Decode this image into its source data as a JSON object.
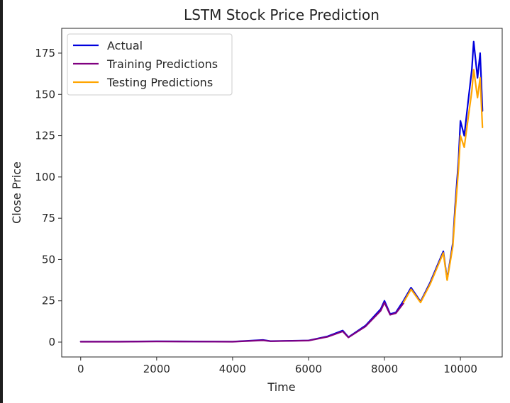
{
  "chart_data": {
    "type": "line",
    "title": "LSTM Stock Price Prediction",
    "xlabel": "Time",
    "ylabel": "Close Price",
    "xlim": [
      -500,
      11100
    ],
    "ylim": [
      -9,
      190
    ],
    "xticks": [
      0,
      2000,
      4000,
      6000,
      8000,
      10000
    ],
    "yticks": [
      0,
      25,
      50,
      75,
      100,
      125,
      150,
      175
    ],
    "grid": false,
    "legend_position": "upper-left",
    "series": [
      {
        "name": "Actual",
        "color": "#0000dd",
        "points": [
          [
            0,
            0.3
          ],
          [
            1000,
            0.3
          ],
          [
            2000,
            0.5
          ],
          [
            3000,
            0.4
          ],
          [
            4000,
            0.3
          ],
          [
            4800,
            1.3
          ],
          [
            5000,
            0.6
          ],
          [
            6000,
            1.0
          ],
          [
            6500,
            3.5
          ],
          [
            6900,
            7.0
          ],
          [
            7050,
            3.0
          ],
          [
            7500,
            10.0
          ],
          [
            7900,
            20.0
          ],
          [
            8000,
            25.0
          ],
          [
            8150,
            17.0
          ],
          [
            8300,
            18.0
          ],
          [
            8500,
            25.0
          ],
          [
            8700,
            33.0
          ],
          [
            8950,
            24.5
          ],
          [
            9200,
            36.0
          ],
          [
            9550,
            55.0
          ],
          [
            9650,
            38.0
          ],
          [
            9800,
            60.0
          ],
          [
            9860,
            82.0
          ],
          [
            9950,
            110.0
          ],
          [
            10000,
            134.0
          ],
          [
            10100,
            125.0
          ],
          [
            10200,
            145.0
          ],
          [
            10300,
            165.0
          ],
          [
            10350,
            182.0
          ],
          [
            10450,
            160.0
          ],
          [
            10520,
            175.0
          ],
          [
            10580,
            140.0
          ]
        ]
      },
      {
        "name": "Training Predictions",
        "color": "#800080",
        "points": [
          [
            0,
            0.2
          ],
          [
            1000,
            0.2
          ],
          [
            2000,
            0.4
          ],
          [
            3000,
            0.3
          ],
          [
            4000,
            0.2
          ],
          [
            4800,
            1.1
          ],
          [
            5000,
            0.5
          ],
          [
            6000,
            0.9
          ],
          [
            6500,
            3.2
          ],
          [
            6900,
            6.5
          ],
          [
            7050,
            2.8
          ],
          [
            7500,
            9.5
          ],
          [
            7900,
            19.0
          ],
          [
            8000,
            24.0
          ],
          [
            8150,
            16.5
          ],
          [
            8300,
            17.5
          ],
          [
            8500,
            23.5
          ]
        ]
      },
      {
        "name": "Testing Predictions",
        "color": "#ffa500",
        "points": [
          [
            8500,
            24.0
          ],
          [
            8700,
            32.0
          ],
          [
            8950,
            24.0
          ],
          [
            9200,
            35.0
          ],
          [
            9550,
            54.0
          ],
          [
            9650,
            37.5
          ],
          [
            9800,
            58.0
          ],
          [
            9860,
            78.0
          ],
          [
            9950,
            105.0
          ],
          [
            10000,
            125.0
          ],
          [
            10100,
            118.0
          ],
          [
            10200,
            135.0
          ],
          [
            10300,
            152.0
          ],
          [
            10350,
            165.0
          ],
          [
            10450,
            148.0
          ],
          [
            10520,
            160.0
          ],
          [
            10580,
            130.0
          ]
        ]
      }
    ]
  }
}
